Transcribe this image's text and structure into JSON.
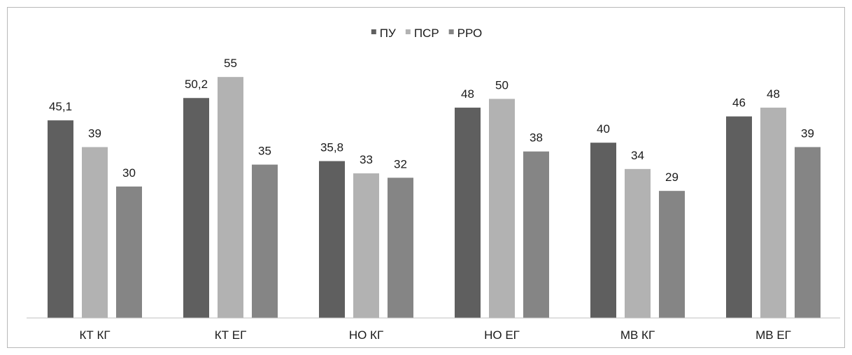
{
  "chart_data": {
    "type": "bar",
    "title": "",
    "xlabel": "",
    "ylabel": "",
    "categories": [
      "КТ КГ",
      "КТ ЕГ",
      "НО КГ",
      "НО ЕГ",
      "МВ КГ",
      "МВ ЕГ"
    ],
    "series": [
      {
        "name": "ПУ",
        "color": "#5f5f5f",
        "values": [
          45.1,
          50.2,
          35.8,
          48,
          40,
          46
        ]
      },
      {
        "name": "ПСР",
        "color": "#b2b2b2",
        "values": [
          39,
          55,
          33,
          50,
          34,
          48
        ]
      },
      {
        "name": "РРО",
        "color": "#858585",
        "values": [
          30,
          35,
          32,
          38,
          29,
          39
        ]
      }
    ],
    "data_labels": [
      [
        "45,1",
        "50,2",
        "35,8",
        "48",
        "40",
        "46"
      ],
      [
        "39",
        "55",
        "33",
        "50",
        "34",
        "48"
      ],
      [
        "30",
        "35",
        "32",
        "38",
        "29",
        "39"
      ]
    ],
    "ylim": [
      0,
      55
    ],
    "grid": false,
    "legend_position": "top-center"
  }
}
